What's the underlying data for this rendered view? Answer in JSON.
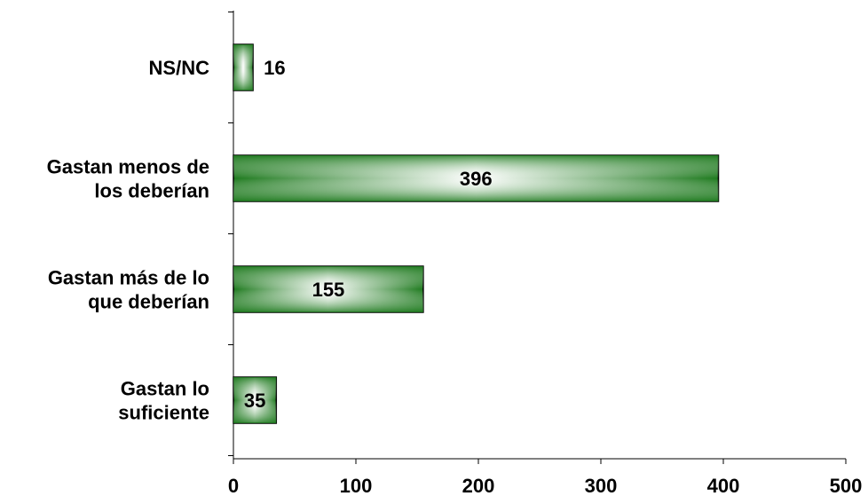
{
  "chart_data": {
    "type": "bar",
    "orientation": "horizontal",
    "title": "",
    "xlabel": "",
    "ylabel": "",
    "categories": [
      [
        "NS/NC"
      ],
      [
        "Gastan menos de",
        "los deberían"
      ],
      [
        "Gastan más de lo",
        "que deberían"
      ],
      [
        "Gastan lo",
        "suficiente"
      ]
    ],
    "values": [
      16,
      396,
      155,
      35
    ],
    "xlim": [
      0,
      500
    ],
    "xticks": [
      "0",
      "100",
      "200",
      "300",
      "400",
      "500"
    ],
    "grid": false,
    "legend": "none",
    "colors": {
      "bar_dark": "#1e7a1e",
      "bar_light": "#ffffff",
      "outline": "#000000"
    }
  }
}
